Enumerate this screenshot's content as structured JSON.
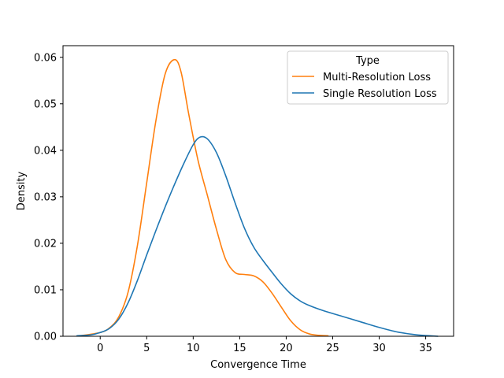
{
  "chart_data": {
    "type": "line",
    "title": "",
    "xlabel": "Convergence Time",
    "ylabel": "Density",
    "xlim": [
      -4.0,
      38.0
    ],
    "ylim": [
      0.0,
      0.0625
    ],
    "xticks": [
      0,
      5,
      10,
      15,
      20,
      25,
      30,
      35
    ],
    "yticks": [
      0.0,
      0.01,
      0.02,
      0.03,
      0.04,
      0.05,
      0.06
    ],
    "ytick_labels": [
      "0.00",
      "0.01",
      "0.02",
      "0.03",
      "0.04",
      "0.05",
      "0.06"
    ],
    "grid": false,
    "legend": {
      "title": "Type",
      "placement": "top-right"
    },
    "series": [
      {
        "name": "Multi-Resolution Loss",
        "color": "#ff7f0e",
        "x": [
          -2.2,
          0,
          1,
          2,
          3,
          4,
          5,
          6,
          7,
          8,
          8.7,
          9.5,
          10.5,
          11.5,
          12.5,
          13.5,
          14.5,
          15.5,
          16.5,
          17.5,
          18.5,
          19.5,
          20.5,
          21.5,
          22.5,
          23.5,
          24.5
        ],
        "y": [
          0.0001,
          0.0008,
          0.0018,
          0.0042,
          0.0095,
          0.0195,
          0.033,
          0.0465,
          0.0565,
          0.0595,
          0.0568,
          0.048,
          0.038,
          0.0305,
          0.023,
          0.0165,
          0.0137,
          0.0133,
          0.013,
          0.0117,
          0.0092,
          0.0062,
          0.0033,
          0.0014,
          0.0005,
          0.0002,
          0.0001
        ]
      },
      {
        "name": "Single Resolution Loss",
        "color": "#1f77b4",
        "x": [
          -2.5,
          -1,
          0,
          1,
          2,
          3,
          4,
          5,
          6,
          7,
          8,
          9,
          10,
          10.7,
          11.5,
          12.5,
          13.5,
          14.5,
          15.5,
          16.5,
          17.5,
          18.5,
          19.5,
          20.5,
          21.5,
          22.5,
          24,
          26,
          28,
          30,
          32,
          34,
          35.5,
          36.3
        ],
        "y": [
          0.0001,
          0.0003,
          0.0008,
          0.0017,
          0.0037,
          0.0072,
          0.012,
          0.0175,
          0.0228,
          0.0279,
          0.0327,
          0.0372,
          0.0412,
          0.0428,
          0.0425,
          0.0395,
          0.0345,
          0.0287,
          0.0233,
          0.0192,
          0.0163,
          0.0137,
          0.0112,
          0.0091,
          0.0076,
          0.0066,
          0.0055,
          0.0043,
          0.0031,
          0.0019,
          0.0009,
          0.0003,
          0.0001,
          0.0
        ]
      }
    ]
  }
}
